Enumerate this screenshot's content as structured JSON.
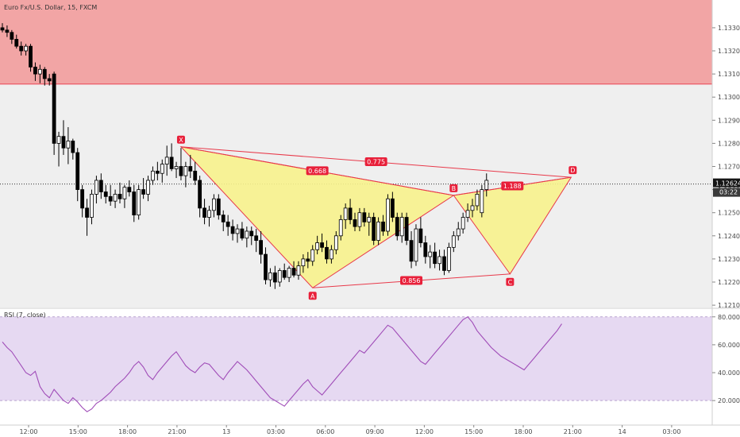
{
  "header": {
    "title": "Euro Fx/U.S. Dollar, 15, FXCM"
  },
  "price_axis": {
    "current_price": "1.12624",
    "countdown": "03:22"
  },
  "rsi_panel": {
    "title": "RSI (7, close)"
  },
  "colors": {
    "zone_red": "#f2a5a5",
    "zone_red_line": "#e8394a",
    "pattern_fill": "#f7f28c",
    "pattern_line": "#e8394a",
    "rsi_band": "#e6d9f2",
    "rsi_line": "#a04db8",
    "label_bg": "#e8203a",
    "price_tag_bg": "#151515"
  },
  "chart_data": [
    {
      "type": "candlestick",
      "title": "Euro Fx/U.S. Dollar, 15, FXCM",
      "y_ticks": [
        1.121,
        1.122,
        1.123,
        1.124,
        1.125,
        1.126,
        1.127,
        1.128,
        1.129,
        1.13,
        1.131,
        1.132,
        1.133
      ],
      "y_tick_labels": [
        "1.12100",
        "1.12200",
        "1.12300",
        "1.12400",
        "1.12500",
        "1.12600",
        "1.12700",
        "1.12800",
        "1.12900",
        "1.13000",
        "1.13100",
        "1.13200",
        "1.13300"
      ],
      "ylim": [
        1.1209,
        1.1342
      ],
      "x_ticks": [
        "12:00",
        "15:00",
        "18:00",
        "21:00",
        "13",
        "03:00",
        "06:00",
        "09:00",
        "12:00",
        "15:00",
        "18:00",
        "21:00",
        "14",
        "03:00"
      ],
      "resistance_zone": {
        "y_from": 1.13056,
        "y_to": 1.1342
      },
      "current_price": 1.12624,
      "candles": [
        [
          1.133,
          1.1332,
          1.1328,
          1.1329
        ],
        [
          1.1329,
          1.1331,
          1.1326,
          1.1328
        ],
        [
          1.1328,
          1.1329,
          1.1323,
          1.1325
        ],
        [
          1.1325,
          1.1327,
          1.1321,
          1.1322
        ],
        [
          1.1322,
          1.1324,
          1.1318,
          1.132
        ],
        [
          1.132,
          1.1323,
          1.1318,
          1.1322
        ],
        [
          1.1322,
          1.1323,
          1.1311,
          1.1313
        ],
        [
          1.1313,
          1.1315,
          1.1307,
          1.131
        ],
        [
          1.131,
          1.1314,
          1.1306,
          1.1312
        ],
        [
          1.1312,
          1.1313,
          1.1305,
          1.1308
        ],
        [
          1.1308,
          1.131,
          1.1305,
          1.1307
        ],
        [
          1.131,
          1.1311,
          1.1275,
          1.128
        ],
        [
          1.128,
          1.1285,
          1.127,
          1.1283
        ],
        [
          1.1283,
          1.129,
          1.1275,
          1.1278
        ],
        [
          1.1278,
          1.1287,
          1.1271,
          1.1281
        ],
        [
          1.1281,
          1.1282,
          1.1273,
          1.1276
        ],
        [
          1.1276,
          1.1278,
          1.1255,
          1.126
        ],
        [
          1.126,
          1.1262,
          1.1248,
          1.1252
        ],
        [
          1.1252,
          1.1256,
          1.124,
          1.1248
        ],
        [
          1.1248,
          1.126,
          1.1245,
          1.1258
        ],
        [
          1.1258,
          1.1266,
          1.1254,
          1.1264
        ],
        [
          1.1264,
          1.1267,
          1.1256,
          1.1259
        ],
        [
          1.1259,
          1.1262,
          1.1254,
          1.1257
        ],
        [
          1.1257,
          1.1262,
          1.1253,
          1.1255
        ],
        [
          1.1255,
          1.126,
          1.1252,
          1.1258
        ],
        [
          1.1258,
          1.1263,
          1.1254,
          1.1256
        ],
        [
          1.1256,
          1.1262,
          1.1252,
          1.1261
        ],
        [
          1.1261,
          1.1264,
          1.1257,
          1.1259
        ],
        [
          1.1259,
          1.1262,
          1.1246,
          1.1249
        ],
        [
          1.1249,
          1.1262,
          1.1247,
          1.126
        ],
        [
          1.126,
          1.1265,
          1.1256,
          1.1258
        ],
        [
          1.1258,
          1.1266,
          1.1255,
          1.1264
        ],
        [
          1.1264,
          1.127,
          1.1262,
          1.1268
        ],
        [
          1.1268,
          1.1272,
          1.1264,
          1.1267
        ],
        [
          1.1267,
          1.1273,
          1.1263,
          1.1271
        ],
        [
          1.1271,
          1.1279,
          1.1266,
          1.1274
        ],
        [
          1.1274,
          1.128,
          1.1268,
          1.1269
        ],
        [
          1.1269,
          1.1272,
          1.1265,
          1.127
        ],
        [
          1.127,
          1.1278,
          1.1264,
          1.1266
        ],
        [
          1.1266,
          1.1272,
          1.1261,
          1.127
        ],
        [
          1.127,
          1.1275,
          1.1265,
          1.1268
        ],
        [
          1.1268,
          1.1272,
          1.1262,
          1.1264
        ],
        [
          1.1264,
          1.1266,
          1.1248,
          1.1252
        ],
        [
          1.1252,
          1.1256,
          1.1245,
          1.1248
        ],
        [
          1.1248,
          1.1253,
          1.1244,
          1.1251
        ],
        [
          1.1251,
          1.1258,
          1.1248,
          1.1256
        ],
        [
          1.1256,
          1.1258,
          1.1247,
          1.1249
        ],
        [
          1.1249,
          1.1251,
          1.1242,
          1.1246
        ],
        [
          1.1246,
          1.1249,
          1.124,
          1.1244
        ],
        [
          1.1244,
          1.1247,
          1.1238,
          1.1241
        ],
        [
          1.1241,
          1.1245,
          1.1237,
          1.1243
        ],
        [
          1.1243,
          1.1246,
          1.1238,
          1.1239
        ],
        [
          1.1239,
          1.1244,
          1.1235,
          1.1242
        ],
        [
          1.1242,
          1.1244,
          1.1236,
          1.124
        ],
        [
          1.124,
          1.1243,
          1.1233,
          1.1238
        ],
        [
          1.1238,
          1.1242,
          1.1228,
          1.1232
        ],
        [
          1.1232,
          1.1235,
          1.1219,
          1.1221
        ],
        [
          1.1221,
          1.1226,
          1.1218,
          1.1224
        ],
        [
          1.1224,
          1.1227,
          1.1217,
          1.122
        ],
        [
          1.122,
          1.1226,
          1.1218,
          1.1225
        ],
        [
          1.1225,
          1.1228,
          1.1221,
          1.1222
        ],
        [
          1.1222,
          1.1227,
          1.122,
          1.1226
        ],
        [
          1.1226,
          1.1229,
          1.1222,
          1.1223
        ],
        [
          1.1223,
          1.1229,
          1.1221,
          1.1227
        ],
        [
          1.1227,
          1.1232,
          1.1224,
          1.123
        ],
        [
          1.123,
          1.1233,
          1.1226,
          1.1229
        ],
        [
          1.1229,
          1.1236,
          1.1227,
          1.1234
        ],
        [
          1.1234,
          1.124,
          1.1232,
          1.1237
        ],
        [
          1.1237,
          1.1241,
          1.1233,
          1.1235
        ],
        [
          1.1235,
          1.1238,
          1.1228,
          1.123
        ],
        [
          1.123,
          1.1236,
          1.1228,
          1.1234
        ],
        [
          1.1234,
          1.1242,
          1.1232,
          1.124
        ],
        [
          1.124,
          1.1249,
          1.1238,
          1.1247
        ],
        [
          1.1247,
          1.1254,
          1.1243,
          1.1252
        ],
        [
          1.1252,
          1.1256,
          1.1245,
          1.1247
        ],
        [
          1.1247,
          1.125,
          1.1242,
          1.1244
        ],
        [
          1.1244,
          1.1252,
          1.1242,
          1.125
        ],
        [
          1.125,
          1.1252,
          1.1244,
          1.1246
        ],
        [
          1.1246,
          1.125,
          1.124,
          1.1248
        ],
        [
          1.1248,
          1.125,
          1.1236,
          1.1238
        ],
        [
          1.1238,
          1.1248,
          1.1236,
          1.1246
        ],
        [
          1.1246,
          1.1249,
          1.124,
          1.1242
        ],
        [
          1.1242,
          1.1258,
          1.124,
          1.1256
        ],
        [
          1.1256,
          1.1259,
          1.1246,
          1.1248
        ],
        [
          1.1248,
          1.125,
          1.1238,
          1.124
        ],
        [
          1.124,
          1.125,
          1.1237,
          1.1248
        ],
        [
          1.1248,
          1.125,
          1.1236,
          1.1238
        ],
        [
          1.1238,
          1.1242,
          1.1226,
          1.1229
        ],
        [
          1.1229,
          1.1245,
          1.1227,
          1.1243
        ],
        [
          1.1243,
          1.1248,
          1.1235,
          1.1237
        ],
        [
          1.1237,
          1.124,
          1.1228,
          1.1231
        ],
        [
          1.1231,
          1.1236,
          1.1226,
          1.1233
        ],
        [
          1.1233,
          1.1237,
          1.1226,
          1.1228
        ],
        [
          1.1228,
          1.1234,
          1.1225,
          1.1231
        ],
        [
          1.1231,
          1.1234,
          1.1223,
          1.1225
        ],
        [
          1.1225,
          1.1237,
          1.1224,
          1.1235
        ],
        [
          1.1235,
          1.1242,
          1.1233,
          1.124
        ],
        [
          1.124,
          1.1246,
          1.1238,
          1.1243
        ],
        [
          1.1243,
          1.125,
          1.1241,
          1.1248
        ],
        [
          1.1248,
          1.1254,
          1.1246,
          1.1251
        ],
        [
          1.1251,
          1.1256,
          1.1248,
          1.1253
        ],
        [
          1.1253,
          1.126,
          1.1251,
          1.1258
        ],
        [
          1.125,
          1.1262,
          1.1248,
          1.126
        ],
        [
          1.126,
          1.1267,
          1.1257,
          1.1264
        ]
      ],
      "pattern": {
        "points": [
          {
            "label": "X",
            "candle": 38,
            "y": 1.12785
          },
          {
            "label": "A",
            "candle": 66,
            "y": 1.12175
          },
          {
            "label": "B",
            "candle": 96,
            "y": 1.12575
          },
          {
            "label": "C",
            "candle": 108,
            "y": 1.12235
          },
          {
            "label": "D",
            "candle": 121,
            "y": 1.12653
          }
        ],
        "ratios": [
          {
            "value": "0.668",
            "between": [
              "X",
              "B"
            ]
          },
          {
            "value": "0.775",
            "between": [
              "X",
              "D"
            ]
          },
          {
            "value": "0.856",
            "between": [
              "A",
              "C"
            ]
          },
          {
            "value": "1.188",
            "between": [
              "B",
              "D"
            ]
          }
        ]
      }
    },
    {
      "type": "line",
      "title": "RSI (7, close)",
      "y_ticks": [
        20,
        40,
        60,
        80
      ],
      "y_tick_labels": [
        "20.0000",
        "40.0000",
        "60.0000",
        "80.0000"
      ],
      "ylim": [
        3,
        85
      ],
      "band": [
        20,
        80
      ],
      "values": [
        62,
        58,
        55,
        50,
        45,
        40,
        38,
        41,
        30,
        25,
        22,
        28,
        24,
        20,
        18,
        22,
        19,
        15,
        12,
        14,
        18,
        20,
        23,
        26,
        30,
        33,
        36,
        40,
        45,
        48,
        44,
        38,
        35,
        40,
        44,
        48,
        52,
        55,
        50,
        45,
        42,
        40,
        44,
        47,
        46,
        42,
        38,
        35,
        40,
        44,
        48,
        45,
        42,
        38,
        34,
        30,
        26,
        22,
        20,
        18,
        16,
        20,
        24,
        28,
        32,
        35,
        30,
        27,
        24,
        28,
        32,
        36,
        40,
        44,
        48,
        52,
        56,
        54,
        58,
        62,
        66,
        70,
        74,
        72,
        68,
        64,
        60,
        56,
        52,
        48,
        46,
        50,
        54,
        58,
        62,
        66,
        70,
        74,
        78,
        80,
        76,
        70,
        66,
        62,
        58,
        55,
        52,
        50,
        48,
        46,
        44,
        42,
        46,
        50,
        54,
        58,
        62,
        66,
        70,
        75
      ]
    }
  ]
}
